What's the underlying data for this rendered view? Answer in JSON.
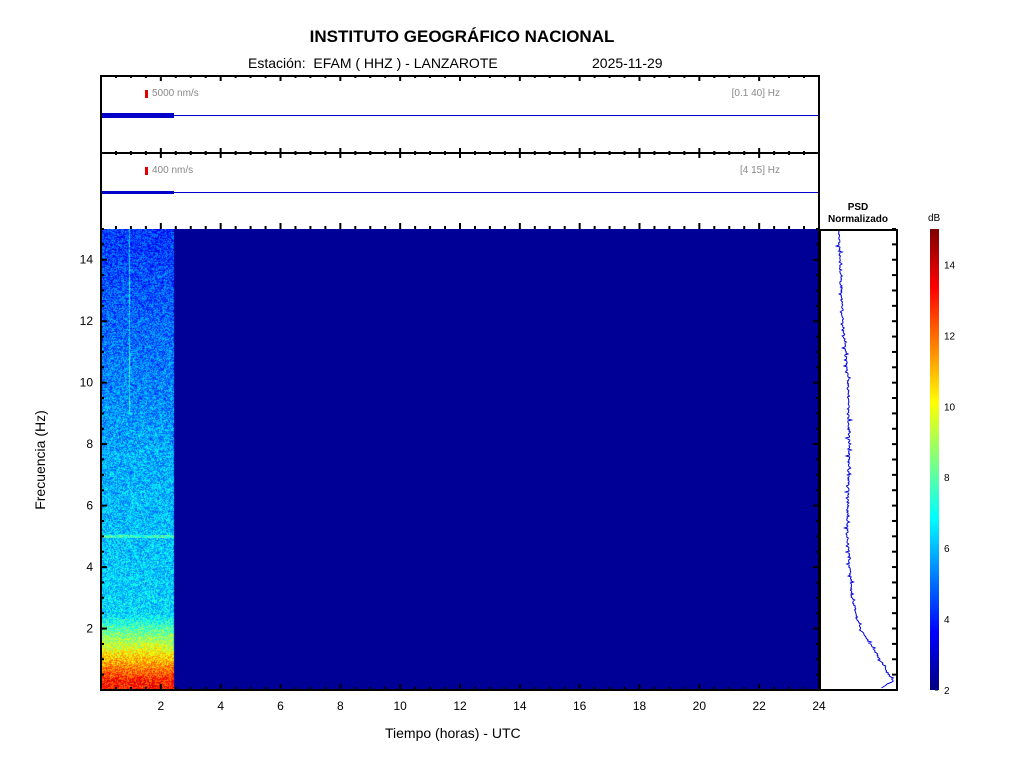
{
  "header": {
    "title": "INSTITUTO GEOGRÁFICO NACIONAL",
    "station_label": "Estación:  EFAM ( HHZ ) - LANZAROTE",
    "date": "2025-11-29"
  },
  "traces": [
    {
      "scale": "5000 nm/s",
      "band": "[0.1 40] Hz"
    },
    {
      "scale": "400 nm/s",
      "band": "[4 15] Hz"
    }
  ],
  "psd": {
    "title1": "PSD",
    "title2": "Normalizado"
  },
  "colors": {
    "trace": "#0000c8",
    "scale_mark": "#e00000"
  },
  "chart_data": {
    "type": "heatmap",
    "title": "INSTITUTO GEOGRÁFICO NACIONAL",
    "xlabel": "Tiempo (horas) - UTC",
    "ylabel": "Frecuencia  (Hz)",
    "xlim": [
      0,
      24
    ],
    "ylim": [
      0,
      15
    ],
    "xticks": [
      "2",
      "4",
      "6",
      "8",
      "10",
      "12",
      "14",
      "16",
      "18",
      "20",
      "22",
      "24"
    ],
    "yticks": [
      "2",
      "4",
      "6",
      "8",
      "10",
      "12",
      "14"
    ],
    "data_end_hour": 2.45,
    "colorbar": {
      "label": "dB",
      "range": [
        2,
        15
      ],
      "ticks": [
        "2",
        "4",
        "6",
        "8",
        "10",
        "12",
        "14"
      ]
    },
    "psd_profile": {
      "freq": [
        0,
        0.3,
        1,
        2,
        3,
        5,
        8,
        10,
        12,
        15
      ],
      "normalized": [
        0.78,
        0.96,
        0.79,
        0.53,
        0.42,
        0.36,
        0.38,
        0.37,
        0.3,
        0.24
      ]
    }
  }
}
